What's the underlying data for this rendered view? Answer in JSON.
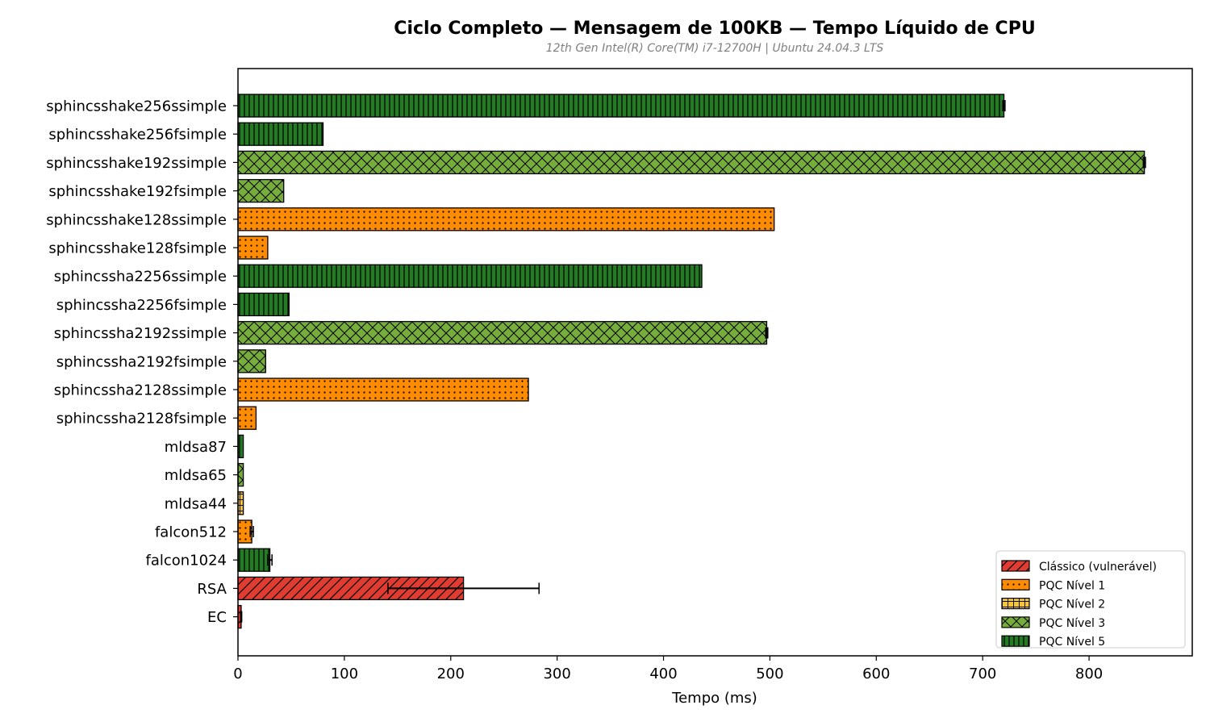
{
  "chart_data": {
    "type": "bar",
    "orientation": "horizontal",
    "title": "Ciclo Completo — Mensagem de 100KB — Tempo Líquido de CPU",
    "subtitle": "12th Gen Intel(R) Core(TM) i7-12700H | Ubuntu 24.04.3 LTS",
    "xlabel": "Tempo (ms)",
    "ylabel": "",
    "xlim": [
      0,
      897
    ],
    "xticks": [
      0,
      100,
      200,
      300,
      400,
      500,
      600,
      700,
      800
    ],
    "grid": false,
    "legend_position": "bottom-right",
    "legend": [
      {
        "key": "classico",
        "label": "Clássico (vulnerável)",
        "color": "#e03c31",
        "pattern": "diagonal"
      },
      {
        "key": "nivel1",
        "label": "PQC Nível 1",
        "color": "#ff8c00",
        "pattern": "dots"
      },
      {
        "key": "nivel2",
        "label": "PQC Nível 2",
        "color": "#f5c542",
        "pattern": "grid"
      },
      {
        "key": "nivel3",
        "label": "PQC Nível 3",
        "color": "#77ad3c",
        "pattern": "crosshatch"
      },
      {
        "key": "nivel5",
        "label": "PQC Nível 5",
        "color": "#267a26",
        "pattern": "vertical"
      }
    ],
    "bars": [
      {
        "label": "sphincsshake256ssimple",
        "value": 720,
        "error": 1,
        "category": "nivel5"
      },
      {
        "label": "sphincsshake256fsimple",
        "value": 80,
        "error": 0,
        "category": "nivel5"
      },
      {
        "label": "sphincsshake192ssimple",
        "value": 852,
        "error": 1,
        "category": "nivel3"
      },
      {
        "label": "sphincsshake192fsimple",
        "value": 43,
        "error": 0,
        "category": "nivel3"
      },
      {
        "label": "sphincsshake128ssimple",
        "value": 504,
        "error": 0,
        "category": "nivel1"
      },
      {
        "label": "sphincsshake128fsimple",
        "value": 28,
        "error": 0,
        "category": "nivel1"
      },
      {
        "label": "sphincssha2256ssimple",
        "value": 436,
        "error": 0,
        "category": "nivel5"
      },
      {
        "label": "sphincssha2256fsimple",
        "value": 48,
        "error": 0,
        "category": "nivel5"
      },
      {
        "label": "sphincssha2192ssimple",
        "value": 497,
        "error": 1,
        "category": "nivel3"
      },
      {
        "label": "sphincssha2192fsimple",
        "value": 26,
        "error": 0,
        "category": "nivel3"
      },
      {
        "label": "sphincssha2128ssimple",
        "value": 273,
        "error": 0,
        "category": "nivel1"
      },
      {
        "label": "sphincssha2128fsimple",
        "value": 17,
        "error": 0,
        "category": "nivel1"
      },
      {
        "label": "mldsa87",
        "value": 5,
        "error": 0,
        "category": "nivel5"
      },
      {
        "label": "mldsa65",
        "value": 5,
        "error": 0,
        "category": "nivel3"
      },
      {
        "label": "mldsa44",
        "value": 5,
        "error": 0,
        "category": "nivel2"
      },
      {
        "label": "falcon512",
        "value": 13,
        "error": 1.5,
        "category": "nivel1"
      },
      {
        "label": "falcon1024",
        "value": 30,
        "error": 2,
        "category": "nivel5"
      },
      {
        "label": "RSA",
        "value": 212,
        "error": 71,
        "category": "classico"
      },
      {
        "label": "EC",
        "value": 3,
        "error": 0.5,
        "category": "classico"
      }
    ]
  }
}
